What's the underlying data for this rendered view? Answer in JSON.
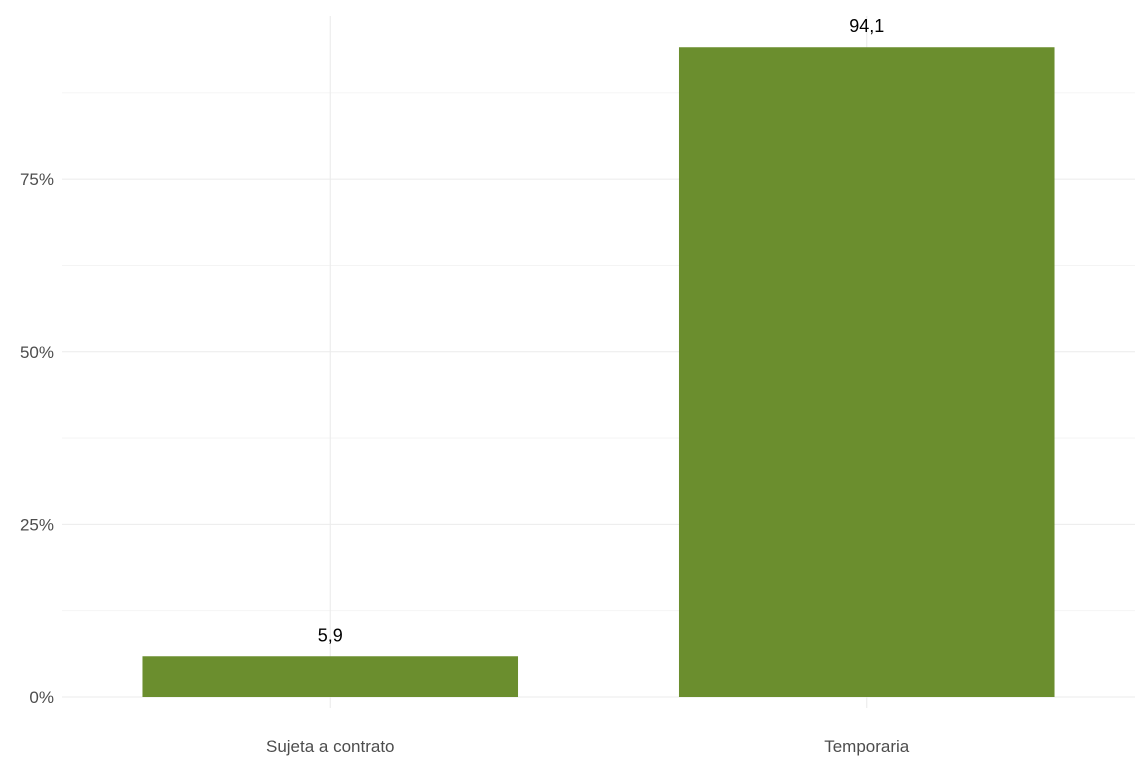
{
  "chart_data": {
    "type": "bar",
    "title": "",
    "xlabel": "",
    "ylabel": "",
    "categories": [
      "Sujeta a contrato",
      "Temporaria"
    ],
    "values": [
      5.9,
      94.1
    ],
    "data_labels": [
      "5,9",
      "94,1"
    ],
    "ylim": [
      0,
      100
    ],
    "y_ticks": [
      0,
      25,
      50,
      75
    ],
    "y_tick_labels": [
      "0%",
      "25%",
      "50%",
      "75%"
    ],
    "grid": true,
    "legend": "none",
    "bar_color": "#6b8e2e"
  }
}
